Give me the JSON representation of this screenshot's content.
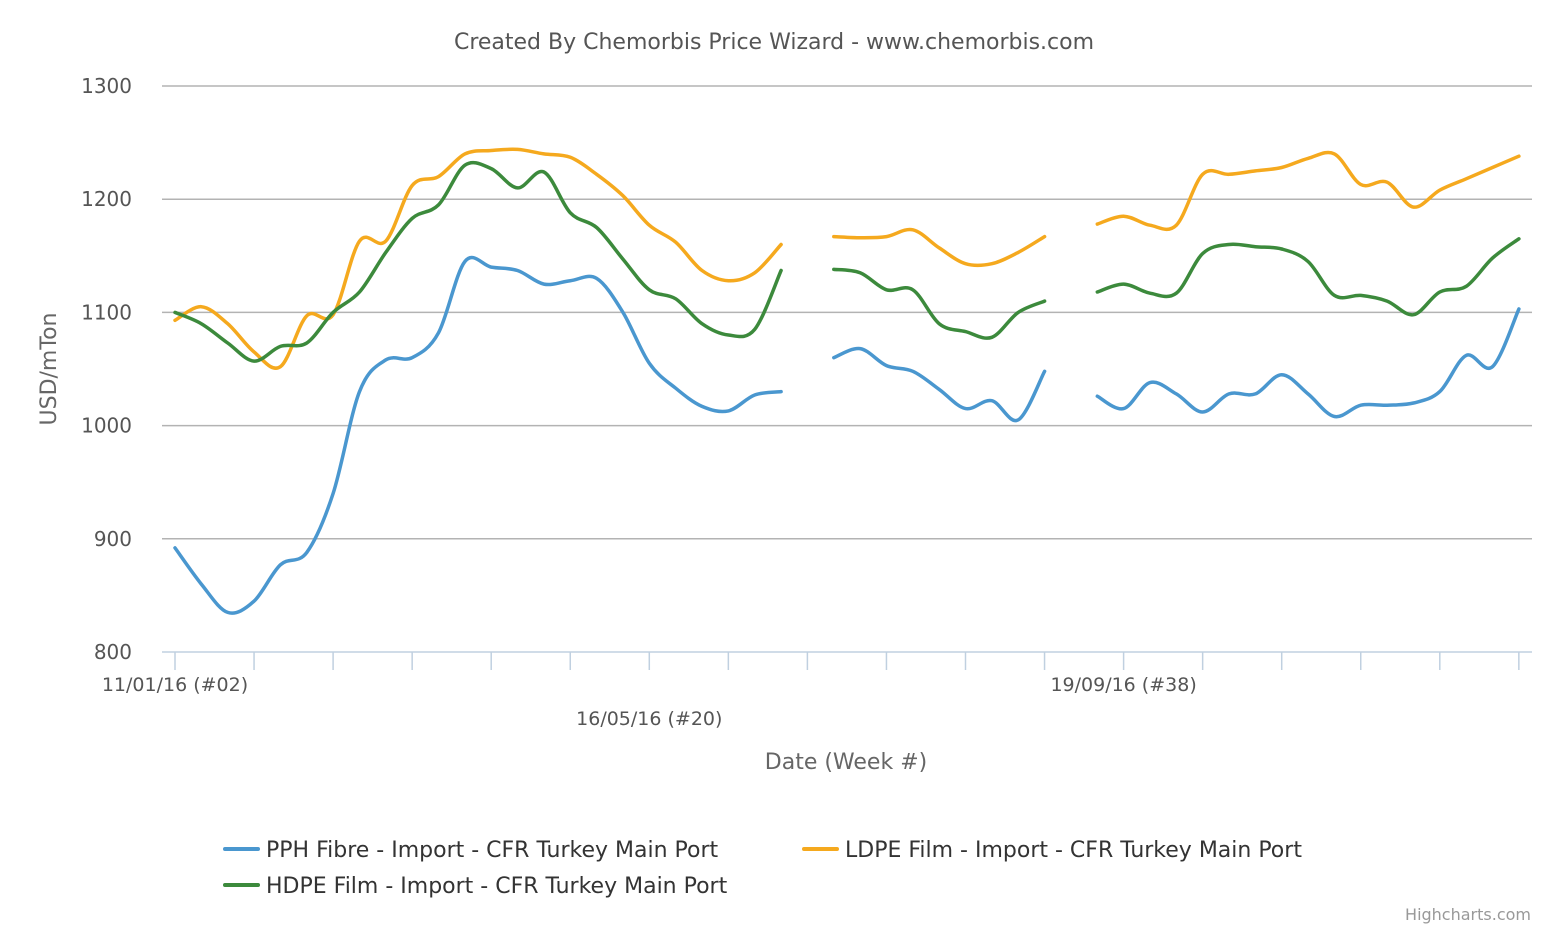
{
  "chart_data": {
    "type": "line",
    "title": "Created By Chemorbis Price Wizard - www.chemorbis.com",
    "xlabel": "Date (Week #)",
    "ylabel": "USD/mTon",
    "ylim": [
      800,
      1300
    ],
    "yticks": [
      800,
      900,
      1000,
      1100,
      1200,
      1300
    ],
    "grid": true,
    "legend_position": "bottom",
    "x_start_week": 2,
    "x_end_week": 52,
    "x_tick_weeks": [
      2,
      5,
      8,
      11,
      14,
      17,
      20,
      23,
      26,
      29,
      32,
      35,
      38,
      41,
      44,
      47,
      50,
      53
    ],
    "x_labels": [
      {
        "week": 2,
        "label": "11/01/16 (#02)",
        "row": 0
      },
      {
        "week": 20,
        "label": "16/05/16 (#20)",
        "row": 1
      },
      {
        "week": 38,
        "label": "19/09/16 (#38)",
        "row": 0
      }
    ],
    "series": [
      {
        "name": "PPH Fibre - Import - CFR Turkey Main Port",
        "color": "#4a97cf",
        "segments": [
          [
            [
              2,
              892
            ],
            [
              3,
              860
            ],
            [
              4,
              835
            ],
            [
              5,
              845
            ],
            [
              6,
              877
            ],
            [
              7,
              888
            ],
            [
              8,
              940
            ],
            [
              9,
              1030
            ],
            [
              10,
              1058
            ],
            [
              11,
              1060
            ],
            [
              12,
              1082
            ],
            [
              13,
              1145
            ],
            [
              14,
              1140
            ],
            [
              15,
              1137
            ],
            [
              16,
              1125
            ],
            [
              17,
              1128
            ],
            [
              18,
              1130
            ],
            [
              19,
              1100
            ],
            [
              20,
              1055
            ],
            [
              21,
              1033
            ],
            [
              22,
              1017
            ],
            [
              23,
              1013
            ],
            [
              24,
              1027
            ],
            [
              25,
              1030
            ]
          ],
          [
            [
              27,
              1060
            ],
            [
              28,
              1068
            ],
            [
              29,
              1053
            ],
            [
              30,
              1048
            ],
            [
              31,
              1032
            ],
            [
              32,
              1015
            ],
            [
              33,
              1022
            ],
            [
              34,
              1005
            ],
            [
              35,
              1048
            ]
          ],
          [
            [
              37,
              1026
            ],
            [
              38,
              1015
            ],
            [
              39,
              1038
            ],
            [
              40,
              1028
            ],
            [
              41,
              1012
            ],
            [
              42,
              1028
            ],
            [
              43,
              1028
            ],
            [
              44,
              1045
            ],
            [
              45,
              1028
            ],
            [
              46,
              1008
            ],
            [
              47,
              1018
            ],
            [
              48,
              1018
            ],
            [
              49,
              1020
            ],
            [
              50,
              1030
            ],
            [
              51,
              1062
            ],
            [
              52,
              1052
            ],
            [
              53,
              1103
            ]
          ]
        ]
      },
      {
        "name": "LDPE Film - Import - CFR Turkey Main Port",
        "color": "#f5a91e",
        "segments": [
          [
            [
              2,
              1093
            ],
            [
              3,
              1105
            ],
            [
              4,
              1090
            ],
            [
              5,
              1065
            ],
            [
              6,
              1052
            ],
            [
              7,
              1097
            ],
            [
              8,
              1098
            ],
            [
              9,
              1163
            ],
            [
              10,
              1163
            ],
            [
              11,
              1212
            ],
            [
              12,
              1220
            ],
            [
              13,
              1240
            ],
            [
              14,
              1243
            ],
            [
              15,
              1244
            ],
            [
              16,
              1240
            ],
            [
              17,
              1237
            ],
            [
              18,
              1222
            ],
            [
              19,
              1203
            ],
            [
              20,
              1177
            ],
            [
              21,
              1162
            ],
            [
              22,
              1137
            ],
            [
              23,
              1128
            ],
            [
              24,
              1135
            ],
            [
              25,
              1160
            ]
          ],
          [
            [
              27,
              1167
            ],
            [
              28,
              1166
            ],
            [
              29,
              1167
            ],
            [
              30,
              1173
            ],
            [
              31,
              1157
            ],
            [
              32,
              1143
            ],
            [
              33,
              1143
            ],
            [
              34,
              1153
            ],
            [
              35,
              1167
            ]
          ],
          [
            [
              37,
              1178
            ],
            [
              38,
              1185
            ],
            [
              39,
              1177
            ],
            [
              40,
              1177
            ],
            [
              41,
              1222
            ],
            [
              42,
              1222
            ],
            [
              43,
              1225
            ],
            [
              44,
              1228
            ],
            [
              45,
              1236
            ],
            [
              46,
              1240
            ],
            [
              47,
              1213
            ],
            [
              48,
              1215
            ],
            [
              49,
              1193
            ],
            [
              50,
              1208
            ],
            [
              51,
              1218
            ],
            [
              52,
              1228
            ],
            [
              53,
              1238
            ]
          ]
        ]
      },
      {
        "name": "HDPE Film - Import - CFR Turkey Main Port",
        "color": "#3c8a3c",
        "segments": [
          [
            [
              2,
              1100
            ],
            [
              3,
              1090
            ],
            [
              4,
              1073
            ],
            [
              5,
              1057
            ],
            [
              6,
              1070
            ],
            [
              7,
              1073
            ],
            [
              8,
              1100
            ],
            [
              9,
              1118
            ],
            [
              10,
              1153
            ],
            [
              11,
              1183
            ],
            [
              12,
              1195
            ],
            [
              13,
              1230
            ],
            [
              14,
              1227
            ],
            [
              15,
              1210
            ],
            [
              16,
              1224
            ],
            [
              17,
              1188
            ],
            [
              18,
              1175
            ],
            [
              19,
              1147
            ],
            [
              20,
              1120
            ],
            [
              21,
              1112
            ],
            [
              22,
              1090
            ],
            [
              23,
              1080
            ],
            [
              24,
              1085
            ],
            [
              25,
              1137
            ]
          ],
          [
            [
              27,
              1138
            ],
            [
              28,
              1135
            ],
            [
              29,
              1120
            ],
            [
              30,
              1120
            ],
            [
              31,
              1090
            ],
            [
              32,
              1083
            ],
            [
              33,
              1078
            ],
            [
              34,
              1100
            ],
            [
              35,
              1110
            ]
          ],
          [
            [
              37,
              1118
            ],
            [
              38,
              1125
            ],
            [
              39,
              1117
            ],
            [
              40,
              1117
            ],
            [
              41,
              1152
            ],
            [
              42,
              1160
            ],
            [
              43,
              1158
            ],
            [
              44,
              1156
            ],
            [
              45,
              1145
            ],
            [
              46,
              1115
            ],
            [
              47,
              1115
            ],
            [
              48,
              1110
            ],
            [
              49,
              1098
            ],
            [
              50,
              1118
            ],
            [
              51,
              1123
            ],
            [
              52,
              1148
            ],
            [
              53,
              1165
            ]
          ]
        ]
      }
    ]
  },
  "credits": "Highcharts.com"
}
